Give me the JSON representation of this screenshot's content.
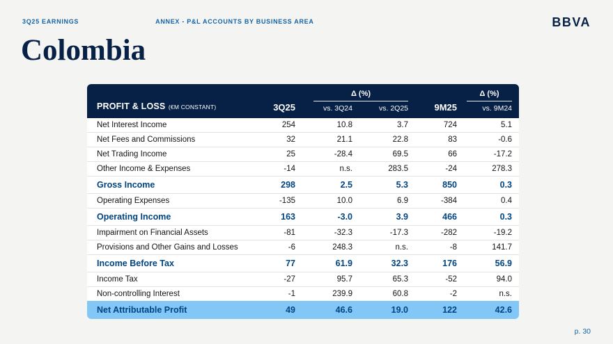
{
  "colors": {
    "navy": "#072146",
    "accent_blue": "#004481",
    "label_blue": "#1464a5",
    "highlight_row": "#82c7f6",
    "background": "#f4f4f3"
  },
  "topbar": {
    "left": "3Q25 EARNINGS",
    "center": "ANNEX - P&L ACCOUNTS BY BUSINESS AREA",
    "logo": "BBVA"
  },
  "title": "Colombia",
  "page_number": "p. 30",
  "table": {
    "title": "PROFIT & LOSS",
    "title_unit": "(€M CONSTANT)",
    "delta_label_1": "Δ (%)",
    "delta_label_2": "Δ (%)",
    "columns": {
      "q": "3Q25",
      "vs1": "vs. 3Q24",
      "vs2": "vs. 2Q25",
      "ytd": "9M25",
      "vs3": "vs. 9M24"
    },
    "rows": [
      {
        "label": "Net Interest Income",
        "values": [
          "254",
          "10.8",
          "3.7",
          "724",
          "5.1"
        ],
        "style": "normal"
      },
      {
        "label": "Net Fees and Commissions",
        "values": [
          "32",
          "21.1",
          "22.8",
          "83",
          "-0.6"
        ],
        "style": "normal"
      },
      {
        "label": "Net Trading Income",
        "values": [
          "25",
          "-28.4",
          "69.5",
          "66",
          "-17.2"
        ],
        "style": "normal"
      },
      {
        "label": "Other Income & Expenses",
        "values": [
          "-14",
          "n.s.",
          "283.5",
          "-24",
          "278.3"
        ],
        "style": "normal"
      },
      {
        "label": "Gross Income",
        "values": [
          "298",
          "2.5",
          "5.3",
          "850",
          "0.3"
        ],
        "style": "bold"
      },
      {
        "label": "Operating Expenses",
        "values": [
          "-135",
          "10.0",
          "6.9",
          "-384",
          "0.4"
        ],
        "style": "normal"
      },
      {
        "label": "Operating Income",
        "values": [
          "163",
          "-3.0",
          "3.9",
          "466",
          "0.3"
        ],
        "style": "bold"
      },
      {
        "label": "Impairment on Financial Assets",
        "values": [
          "-81",
          "-32.3",
          "-17.3",
          "-282",
          "-19.2"
        ],
        "style": "normal"
      },
      {
        "label": "Provisions and Other Gains and Losses",
        "values": [
          "-6",
          "248.3",
          "n.s.",
          "-8",
          "141.7"
        ],
        "style": "normal"
      },
      {
        "label": "Income Before Tax",
        "values": [
          "77",
          "61.9",
          "32.3",
          "176",
          "56.9"
        ],
        "style": "bold"
      },
      {
        "label": "Income Tax",
        "values": [
          "-27",
          "95.7",
          "65.3",
          "-52",
          "94.0"
        ],
        "style": "normal"
      },
      {
        "label": "Non-controlling Interest",
        "values": [
          "-1",
          "239.9",
          "60.8",
          "-2",
          "n.s."
        ],
        "style": "normal"
      },
      {
        "label": "Net Attributable Profit",
        "values": [
          "49",
          "46.6",
          "19.0",
          "122",
          "42.6"
        ],
        "style": "highlight"
      }
    ]
  }
}
